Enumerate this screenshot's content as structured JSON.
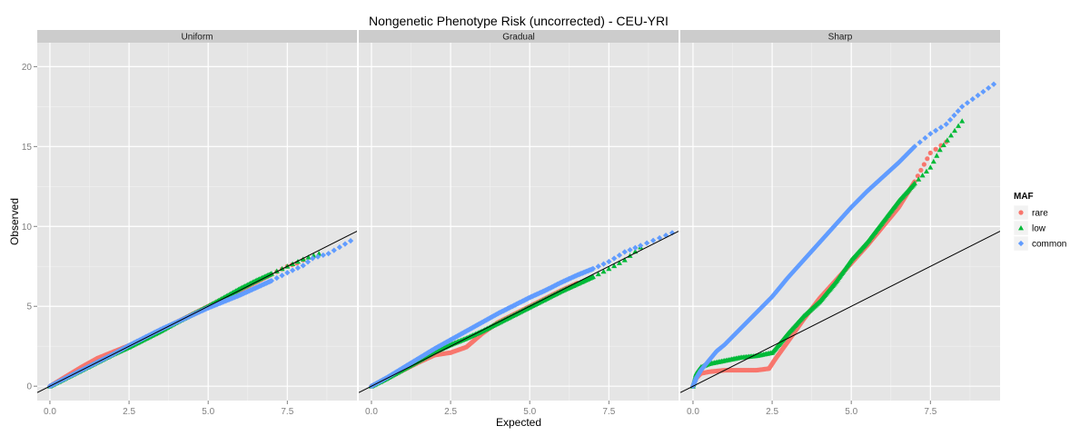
{
  "chart_data": {
    "type": "scatter",
    "title": "Nongenetic Phenotype Risk (uncorrected) - CEU-YRI",
    "xlabel": "Expected",
    "ylabel": "Observed",
    "xlim": [
      -0.4,
      9.7
    ],
    "ylim": [
      -0.9,
      21.5
    ],
    "x_ticks": [
      "0.0",
      "2.5",
      "5.0",
      "7.5"
    ],
    "y_ticks": [
      "0",
      "5",
      "10",
      "15",
      "20"
    ],
    "grid": true,
    "reference_line": {
      "slope": 1,
      "intercept": 0
    },
    "legend": {
      "title": "MAF",
      "position": "right",
      "entries": [
        {
          "label": "rare",
          "color": "#F8766D",
          "shape": "circle"
        },
        {
          "label": "low",
          "color": "#00BA38",
          "shape": "triangle"
        },
        {
          "label": "common",
          "color": "#619CFF",
          "shape": "square"
        }
      ]
    },
    "panels": [
      {
        "label": "Uniform",
        "series": [
          {
            "name": "rare",
            "x": [
              0,
              0.5,
              1.0,
              1.5,
              2.0,
              2.5,
              3.0,
              3.5,
              4.0,
              4.5,
              5.0,
              5.5,
              6.0,
              6.5,
              7.0,
              7.5,
              7.8,
              8.0
            ],
            "y": [
              0,
              0.6,
              1.2,
              1.75,
              2.15,
              2.55,
              3.0,
              3.5,
              4.0,
              4.5,
              5.0,
              5.5,
              6.0,
              6.5,
              7.0,
              7.5,
              7.7,
              7.9
            ]
          },
          {
            "name": "low",
            "x": [
              0,
              0.5,
              1.0,
              1.5,
              2.0,
              2.5,
              3.0,
              3.5,
              4.0,
              4.5,
              5.0,
              5.5,
              6.0,
              6.5,
              7.0,
              7.5,
              8.0,
              8.5
            ],
            "y": [
              0,
              0.5,
              1.0,
              1.5,
              2.0,
              2.45,
              2.95,
              3.45,
              4.0,
              4.5,
              5.0,
              5.55,
              6.1,
              6.6,
              7.05,
              7.5,
              7.95,
              8.3
            ]
          },
          {
            "name": "common",
            "x": [
              0,
              0.5,
              1.0,
              1.5,
              2.0,
              2.5,
              3.0,
              3.5,
              4.0,
              4.5,
              5.0,
              5.5,
              6.0,
              6.5,
              7.0,
              7.5,
              8.0,
              8.3,
              8.8,
              9.5
            ],
            "y": [
              0,
              0.5,
              1.0,
              1.5,
              2.0,
              2.55,
              3.05,
              3.55,
              4.0,
              4.45,
              4.9,
              5.3,
              5.7,
              6.15,
              6.6,
              7.1,
              7.55,
              8.0,
              8.3,
              9.1
            ]
          }
        ]
      },
      {
        "label": "Gradual",
        "series": [
          {
            "name": "rare",
            "x": [
              0,
              0.5,
              1.0,
              1.5,
              2.0,
              2.5,
              3.0,
              3.5,
              4.0,
              4.5,
              5.0,
              5.5,
              6.0,
              6.5
            ],
            "y": [
              0,
              0.5,
              1.0,
              1.5,
              1.95,
              2.1,
              2.45,
              3.3,
              4.0,
              4.5,
              5.0,
              5.5,
              6.0,
              6.45
            ]
          },
          {
            "name": "low",
            "x": [
              0,
              0.5,
              1.0,
              1.5,
              2.0,
              2.5,
              3.0,
              3.5,
              4.0,
              4.5,
              5.0,
              5.5,
              6.0,
              6.5,
              7.0,
              7.5,
              8.0,
              8.5
            ],
            "y": [
              0,
              0.5,
              1.05,
              1.6,
              2.15,
              2.6,
              3.0,
              3.45,
              3.95,
              4.45,
              4.95,
              5.45,
              5.95,
              6.4,
              6.85,
              7.35,
              7.9,
              8.7
            ]
          },
          {
            "name": "common",
            "x": [
              0,
              0.5,
              1.0,
              1.5,
              2.0,
              2.5,
              3.0,
              3.5,
              4.0,
              4.5,
              5.0,
              5.5,
              6.0,
              6.5,
              7.0,
              7.5,
              8.0,
              8.5,
              9.5
            ],
            "y": [
              0,
              0.55,
              1.15,
              1.75,
              2.35,
              2.9,
              3.45,
              4.0,
              4.55,
              5.05,
              5.55,
              6.0,
              6.5,
              6.95,
              7.35,
              7.8,
              8.4,
              8.8,
              9.6
            ]
          }
        ]
      },
      {
        "label": "Sharp",
        "series": [
          {
            "name": "rare",
            "x": [
              0,
              0.1,
              0.25,
              0.5,
              1.0,
              1.5,
              2.0,
              2.4,
              2.6,
              3.0,
              3.5,
              4.0,
              4.5,
              5.0,
              5.5,
              6.0,
              6.5,
              7.0,
              7.5,
              8.0
            ],
            "y": [
              0,
              0.5,
              0.8,
              0.9,
              1.0,
              1.0,
              1.0,
              1.1,
              1.7,
              2.8,
              4.2,
              5.5,
              6.6,
              7.7,
              8.8,
              10.0,
              11.2,
              12.8,
              14.6,
              15.3
            ]
          },
          {
            "name": "low",
            "x": [
              0,
              0.1,
              0.25,
              0.5,
              1.0,
              1.5,
              2.0,
              2.5,
              3.0,
              3.5,
              4.0,
              4.5,
              5.0,
              5.5,
              6.0,
              6.5,
              7.0,
              7.5,
              7.8,
              8.5
            ],
            "y": [
              0,
              0.8,
              1.2,
              1.4,
              1.6,
              1.8,
              1.9,
              2.1,
              3.3,
              4.4,
              5.3,
              6.5,
              7.9,
              9.0,
              10.3,
              11.6,
              12.7,
              13.7,
              14.8,
              16.6
            ]
          },
          {
            "name": "common",
            "x": [
              0,
              0.1,
              0.25,
              0.5,
              0.75,
              1.0,
              1.5,
              2.0,
              2.5,
              3.0,
              3.5,
              4.0,
              4.5,
              5.0,
              5.5,
              6.0,
              6.5,
              7.0,
              7.5,
              8.0,
              8.5,
              9.5
            ],
            "y": [
              0,
              0.5,
              1.0,
              1.6,
              2.2,
              2.6,
              3.6,
              4.6,
              5.6,
              6.8,
              7.9,
              9.0,
              10.1,
              11.2,
              12.2,
              13.1,
              14.0,
              15.0,
              15.8,
              16.4,
              17.5,
              18.9
            ]
          }
        ]
      }
    ]
  }
}
